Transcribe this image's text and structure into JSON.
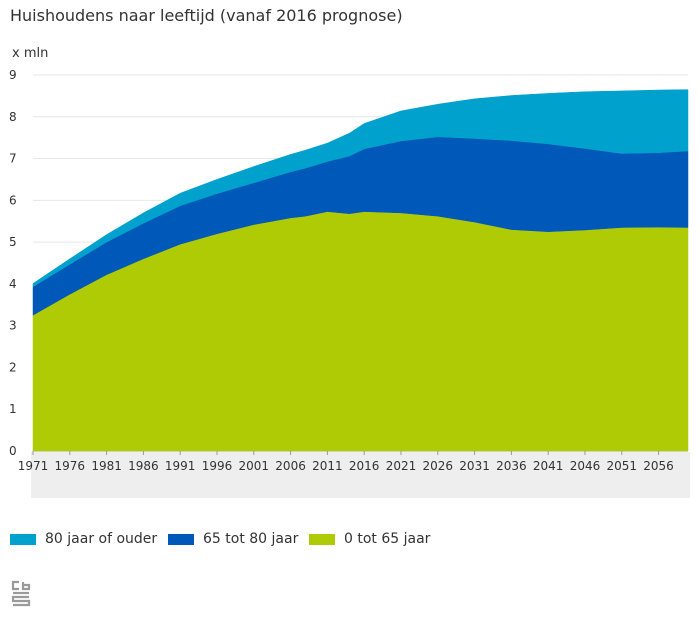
{
  "chart_data": {
    "type": "area",
    "stacked": true,
    "title": "Huishoudens naar leeftijd (vanaf 2016 prognose)",
    "ylabel": "x mln",
    "xlabel": "",
    "ylim": [
      0,
      9
    ],
    "yticks": [
      0,
      1,
      2,
      3,
      4,
      5,
      6,
      7,
      8,
      9
    ],
    "xlim": [
      1971,
      2060
    ],
    "xticks": [
      "1971",
      "1976",
      "1981",
      "1986",
      "1991",
      "1996",
      "2001",
      "2006",
      "2011",
      "2016",
      "2021",
      "2026",
      "2031",
      "2036",
      "2041",
      "2046",
      "2051",
      "2056"
    ],
    "x": [
      1971,
      1976,
      1981,
      1986,
      1991,
      1996,
      2001,
      2006,
      2008,
      2011,
      2014,
      2016,
      2021,
      2026,
      2031,
      2036,
      2041,
      2046,
      2051,
      2056,
      2060
    ],
    "series": [
      {
        "name": "0 tot 65 jaar",
        "color": "#afcb05",
        "values": [
          3.25,
          3.75,
          4.22,
          4.6,
          4.95,
          5.2,
          5.42,
          5.58,
          5.62,
          5.73,
          5.68,
          5.73,
          5.7,
          5.62,
          5.48,
          5.3,
          5.25,
          5.29,
          5.35,
          5.36,
          5.35
        ]
      },
      {
        "name": "65 tot 80 jaar",
        "color": "#0058b8",
        "values": [
          0.68,
          0.72,
          0.78,
          0.85,
          0.92,
          0.96,
          1.0,
          1.1,
          1.15,
          1.2,
          1.38,
          1.5,
          1.72,
          1.9,
          2.0,
          2.13,
          2.1,
          1.95,
          1.77,
          1.78,
          1.83
        ]
      },
      {
        "name": "80 jaar of ouder",
        "color": "#00a1cd",
        "values": [
          0.08,
          0.13,
          0.18,
          0.25,
          0.3,
          0.34,
          0.39,
          0.42,
          0.43,
          0.44,
          0.55,
          0.61,
          0.72,
          0.78,
          0.95,
          1.08,
          1.21,
          1.36,
          1.5,
          1.5,
          1.47
        ]
      }
    ],
    "legend_order": [
      "80 jaar of ouder",
      "65 tot 80 jaar",
      "0 tot 65 jaar"
    ],
    "legend": "bottom-left",
    "grid": true
  },
  "logo": {
    "name": "cbs"
  }
}
